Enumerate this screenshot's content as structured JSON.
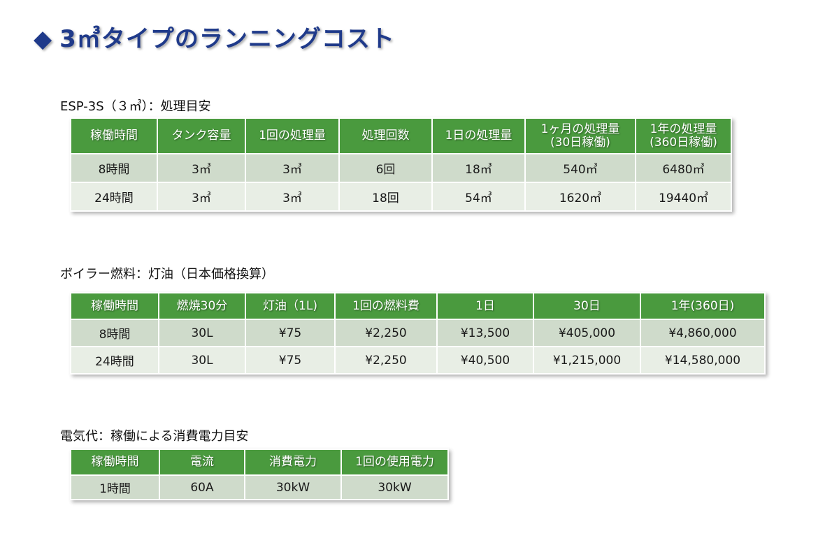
{
  "title": "3㎥タイプのランニングコスト",
  "title_icon": "diamond-icon",
  "accent_green": "#4a9a3e",
  "section1": {
    "caption": "ESP-3S（３㎥）：処理目安",
    "headers": [
      "稼働時間",
      "タンク容量",
      "1回の処理量",
      "処理回数",
      "1日の処理量",
      "1ヶ月の処理量\n(30日稼働)",
      "1年の処理量\n(360日稼働)"
    ],
    "rows": [
      [
        "8時間",
        "3㎥",
        "3㎥",
        "6回",
        "18㎥",
        "540㎥",
        "6480㎥"
      ],
      [
        "24時間",
        "3㎥",
        "3㎥",
        "18回",
        "54㎥",
        "1620㎥",
        "19440㎥"
      ]
    ]
  },
  "section2": {
    "caption": "ボイラー燃料：灯油（日本価格換算）",
    "headers": [
      "稼働時間",
      "燃焼30分",
      "灯油（1L)",
      "1回の燃料費",
      "1日",
      "30日",
      "1年(360日)"
    ],
    "rows": [
      [
        "8時間",
        "30L",
        "¥75",
        "¥2,250",
        "¥13,500",
        "¥405,000",
        "¥4,860,000"
      ],
      [
        "24時間",
        "30L",
        "¥75",
        "¥2,250",
        "¥40,500",
        "¥1,215,000",
        "¥14,580,000"
      ]
    ]
  },
  "section3": {
    "caption": "電気代：稼働による消費電力目安",
    "headers": [
      "稼働時間",
      "電流",
      "消費電力",
      "1回の使用電力"
    ],
    "rows": [
      [
        "1時間",
        "60A",
        "30kW",
        "30kW"
      ]
    ]
  }
}
